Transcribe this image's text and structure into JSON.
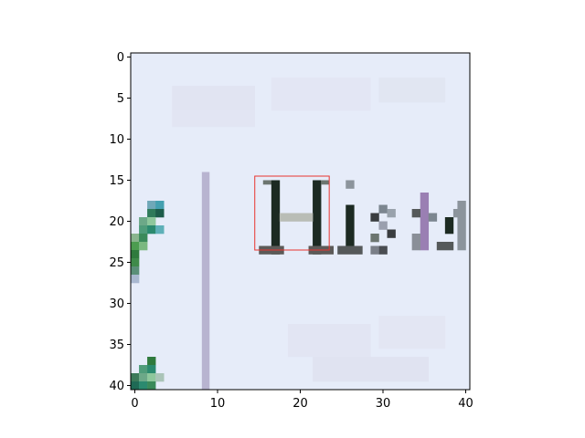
{
  "figure": {
    "description_kind": "matplotlib imshow of a zoomed 41x41 pixel image patch with a red rectangle highlight",
    "image_grid": {
      "rows": 41,
      "cols": 41
    },
    "x_ticks": [
      "0",
      "10",
      "20",
      "30",
      "40"
    ],
    "y_ticks": [
      "0",
      "5",
      "10",
      "15",
      "20",
      "25",
      "30",
      "35",
      "40"
    ],
    "x_tick_values": [
      0,
      10,
      20,
      30,
      40
    ],
    "y_tick_values": [
      0,
      5,
      10,
      15,
      20,
      25,
      30,
      35,
      40
    ],
    "highlight_box": {
      "x0": 15,
      "y0": 15,
      "x1": 24,
      "y1": 24,
      "color": "#e8342f"
    },
    "colors": {
      "background": "#e6ecf9",
      "glyph_dark": "#1c2a22",
      "glyph_gray": "#6c7570",
      "separator": "#b8b4d0",
      "accent_teal": "#2b8a6f",
      "accent_purple": "#9a7fb3"
    }
  }
}
